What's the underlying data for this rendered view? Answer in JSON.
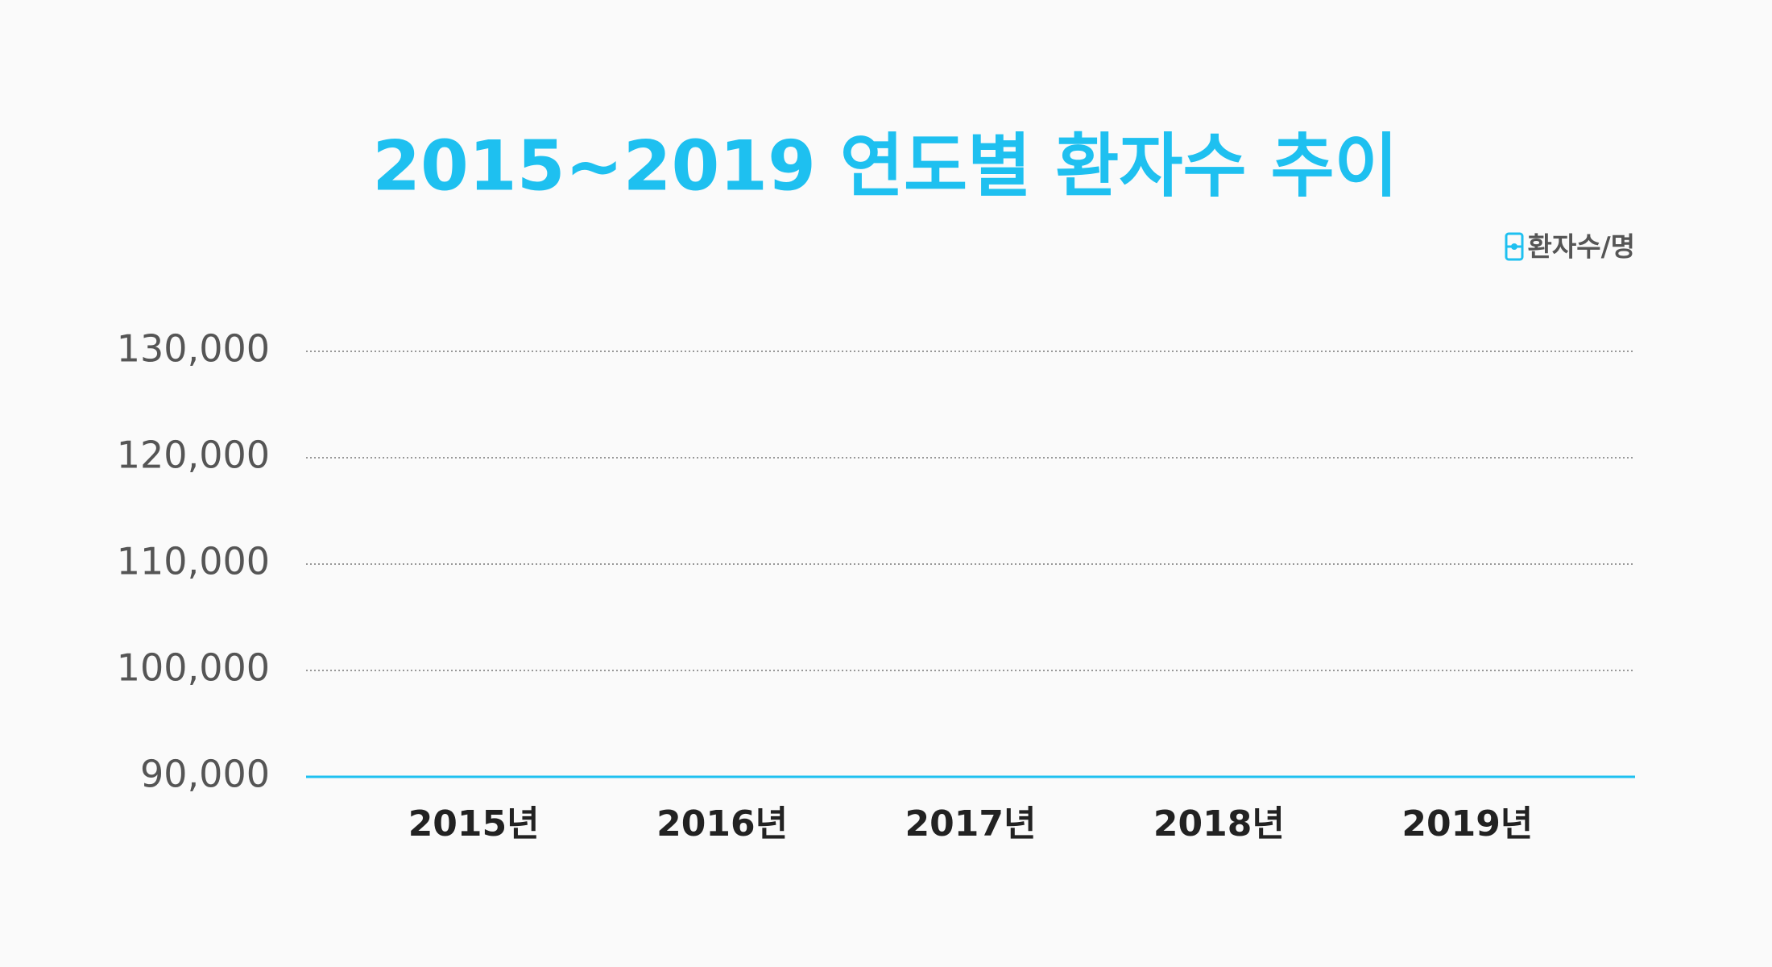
{
  "chart_data": {
    "type": "line",
    "title": "2015~2019 연도별 환자수 추이",
    "unit_label": "환자수/명",
    "categories": [
      "2015년",
      "2016년",
      "2017년",
      "2018년",
      "2019년"
    ],
    "ylim": [
      90000,
      130000
    ],
    "yticks": [
      {
        "value": 90000,
        "label": "90,000"
      },
      {
        "value": 100000,
        "label": "100,000"
      },
      {
        "value": 110000,
        "label": "110,000"
      },
      {
        "value": 120000,
        "label": "120,000"
      },
      {
        "value": 130000,
        "label": "130,000"
      }
    ],
    "grid": true,
    "axis_color": "#1ec0f0",
    "title_color": "#1ec0f0"
  }
}
